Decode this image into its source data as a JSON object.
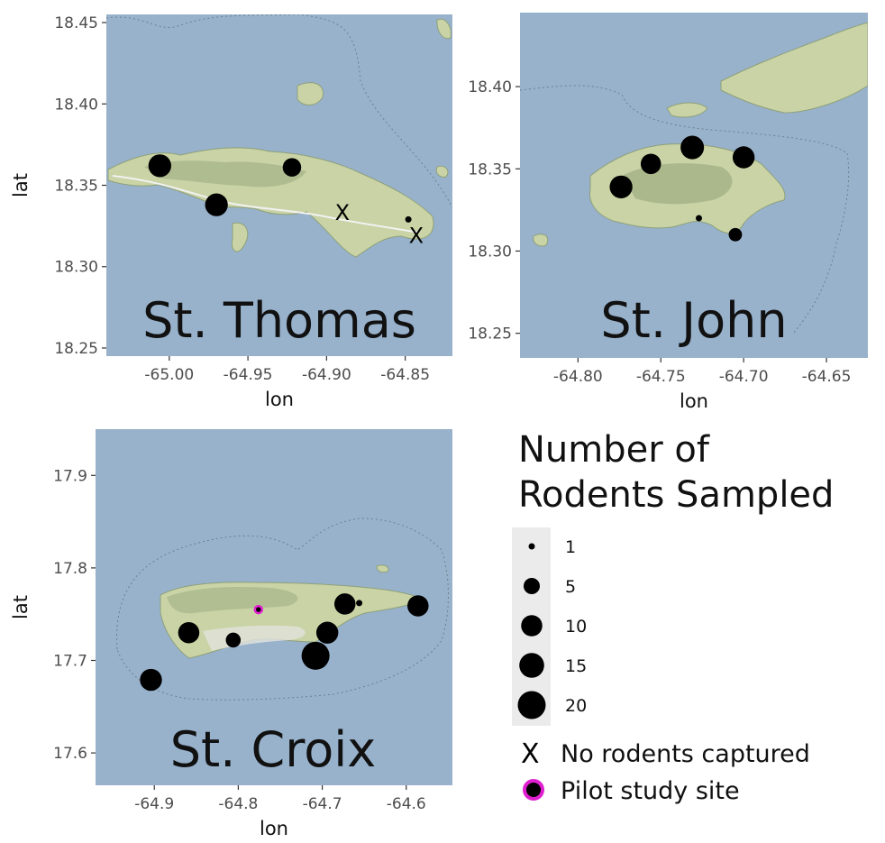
{
  "colors": {
    "water": "#98b2cc",
    "land": "#c9d3a5",
    "land_dark": "#9cad82",
    "road": "#f2f2f2",
    "marker": "#000000",
    "pilot_ring": "#e020d0",
    "legend_key_bg": "#ebebeb"
  },
  "chart_data": [
    {
      "type": "scatter",
      "panel": "st-thomas",
      "label": "St. Thomas",
      "xlabel": "lon",
      "ylabel": "lat",
      "xlim": [
        -65.04,
        -64.82
      ],
      "ylim": [
        18.245,
        18.455
      ],
      "xticks": [
        "-65.00",
        "-64.95",
        "-64.90",
        "-64.85"
      ],
      "xtick_values": [
        -65.0,
        -64.95,
        -64.9,
        -64.85
      ],
      "yticks": [
        "18.25",
        "18.30",
        "18.35",
        "18.40",
        "18.45"
      ],
      "ytick_values": [
        18.25,
        18.3,
        18.35,
        18.4,
        18.45
      ],
      "points": [
        {
          "lon": -65.006,
          "lat": 18.362,
          "n": 12
        },
        {
          "lon": -64.97,
          "lat": 18.338,
          "n": 12
        },
        {
          "lon": -64.922,
          "lat": 18.361,
          "n": 7
        },
        {
          "lon": -64.848,
          "lat": 18.329,
          "n": 1
        }
      ],
      "no_capture": [
        {
          "lon": -64.89,
          "lat": 18.333
        },
        {
          "lon": -64.843,
          "lat": 18.319
        }
      ],
      "pilot": []
    },
    {
      "type": "scatter",
      "panel": "st-john",
      "label": "St. John",
      "xlabel": "lon",
      "ylabel": "",
      "xlim": [
        -64.835,
        -64.625
      ],
      "ylim": [
        18.235,
        18.445
      ],
      "xticks": [
        "-64.80",
        "-64.75",
        "-64.70",
        "-64.65"
      ],
      "xtick_values": [
        -64.8,
        -64.75,
        -64.7,
        -64.65
      ],
      "yticks": [
        "18.25",
        "18.30",
        "18.35",
        "18.40"
      ],
      "ytick_values": [
        18.25,
        18.3,
        18.35,
        18.4
      ],
      "points": [
        {
          "lon": -64.774,
          "lat": 18.339,
          "n": 12
        },
        {
          "lon": -64.756,
          "lat": 18.353,
          "n": 9
        },
        {
          "lon": -64.731,
          "lat": 18.363,
          "n": 13
        },
        {
          "lon": -64.7,
          "lat": 18.357,
          "n": 11
        },
        {
          "lon": -64.727,
          "lat": 18.32,
          "n": 1
        },
        {
          "lon": -64.705,
          "lat": 18.31,
          "n": 3
        }
      ],
      "no_capture": [],
      "pilot": []
    },
    {
      "type": "scatter",
      "panel": "st-croix",
      "label": "St. Croix",
      "xlabel": "lon",
      "ylabel": "lat",
      "xlim": [
        -64.97,
        -64.545
      ],
      "ylim": [
        17.565,
        17.95
      ],
      "xticks": [
        "-64.9",
        "-64.8",
        "-64.7",
        "-64.6"
      ],
      "xtick_values": [
        -64.9,
        -64.8,
        -64.7,
        -64.6
      ],
      "yticks": [
        "17.6",
        "17.7",
        "17.8",
        "17.9"
      ],
      "ytick_values": [
        17.6,
        17.7,
        17.8,
        17.9
      ],
      "points": [
        {
          "lon": -64.904,
          "lat": 17.679,
          "n": 11
        },
        {
          "lon": -64.859,
          "lat": 17.73,
          "n": 10
        },
        {
          "lon": -64.806,
          "lat": 17.722,
          "n": 4
        },
        {
          "lon": -64.708,
          "lat": 17.705,
          "n": 20
        },
        {
          "lon": -64.694,
          "lat": 17.73,
          "n": 11
        },
        {
          "lon": -64.673,
          "lat": 17.761,
          "n": 10
        },
        {
          "lon": -64.656,
          "lat": 17.762,
          "n": 1
        },
        {
          "lon": -64.586,
          "lat": 17.759,
          "n": 10
        }
      ],
      "no_capture": [],
      "pilot": [
        {
          "lon": -64.776,
          "lat": 17.755,
          "n": 1
        }
      ]
    }
  ],
  "legend": {
    "title_line1": "Number of",
    "title_line2": "Rodents Sampled",
    "sizes": [
      {
        "n": 1,
        "label": "1"
      },
      {
        "n": 5,
        "label": "5"
      },
      {
        "n": 10,
        "label": "10"
      },
      {
        "n": 15,
        "label": "15"
      },
      {
        "n": 20,
        "label": "20"
      }
    ],
    "no_capture_label": "No rodents captured",
    "pilot_label": "Pilot study site"
  }
}
